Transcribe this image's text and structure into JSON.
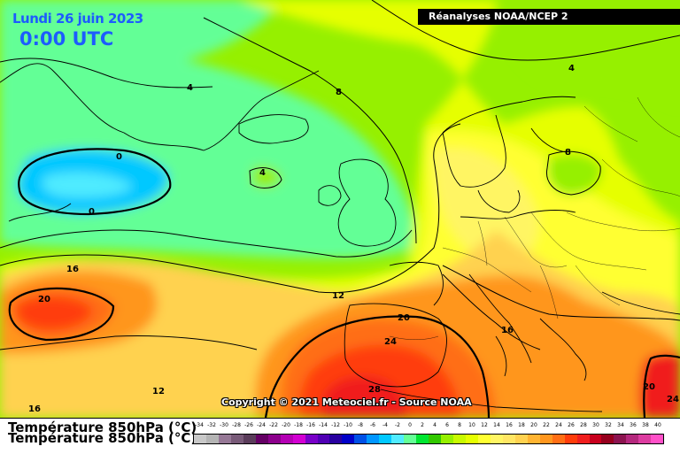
{
  "header": {
    "date": "Lundi 26 juin 2023",
    "time": "0:00 UTC",
    "source": "Réanalyses NOAA/NCEP 2"
  },
  "map": {
    "copyright": "Copyright © 2021 Meteociel.fr - Source NOAA",
    "isotherm_labels": [
      "0",
      "0",
      "4",
      "4",
      "4",
      "8",
      "8",
      "12",
      "12",
      "16",
      "16",
      "16",
      "20",
      "20",
      "20",
      "24",
      "24",
      "28"
    ]
  },
  "legend": {
    "title": "Température 850hPa (°C)",
    "values": [
      "-34",
      "-32",
      "-30",
      "-28",
      "-26",
      "-24",
      "-22",
      "-20",
      "-18",
      "-16",
      "-14",
      "-12",
      "-10",
      "-8",
      "-6",
      "-4",
      "-2",
      "0",
      "2",
      "4",
      "6",
      "8",
      "10",
      "12",
      "14",
      "16",
      "18",
      "20",
      "22",
      "24",
      "26",
      "28",
      "30",
      "32",
      "34",
      "36",
      "38",
      "40"
    ],
    "colors": [
      "#c8c8c8",
      "#b4b4b4",
      "#967896",
      "#785a78",
      "#5a3c5a",
      "#640064",
      "#8c008c",
      "#b400b4",
      "#d200d2",
      "#7800c8",
      "#5000b4",
      "#2800a0",
      "#0000c8",
      "#0050e6",
      "#0096ff",
      "#00c8ff",
      "#50ebff",
      "#64ff96",
      "#00e632",
      "#32c800",
      "#96f000",
      "#c8fa00",
      "#e6ff00",
      "#ffff32",
      "#fff564",
      "#ffe664",
      "#ffd250",
      "#ffb432",
      "#ff961e",
      "#ff6e14",
      "#ff3c0a",
      "#f01e1e",
      "#c8001e",
      "#96001e",
      "#8c1450",
      "#b4287d",
      "#dc3ca0",
      "#ff50c8"
    ]
  }
}
